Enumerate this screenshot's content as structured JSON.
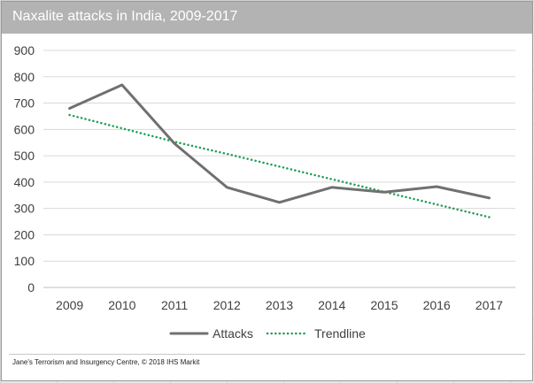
{
  "chart_data": {
    "type": "line",
    "title": "Naxalite attacks in India, 2009-2017",
    "x": [
      "2009",
      "2010",
      "2011",
      "2012",
      "2013",
      "2014",
      "2015",
      "2016",
      "2017"
    ],
    "ylim": [
      0,
      900
    ],
    "yticks": [
      "0",
      "100",
      "200",
      "300",
      "400",
      "500",
      "600",
      "700",
      "800",
      "900"
    ],
    "grid": true,
    "legend_position": "bottom",
    "series": [
      {
        "name": "Attacks",
        "style": "solid",
        "color": "#707070",
        "values": [
          680,
          769,
          546,
          380,
          323,
          380,
          362,
          383,
          340
        ]
      },
      {
        "name": "Trendline",
        "style": "dotted",
        "color": "#1e9e55",
        "values": [
          655,
          604,
          553,
          507,
          459,
          411,
          363,
          315,
          267
        ]
      }
    ]
  },
  "source_note": "Jane's Terrorism and Insurgency Centre, © 2018 IHS Markit"
}
